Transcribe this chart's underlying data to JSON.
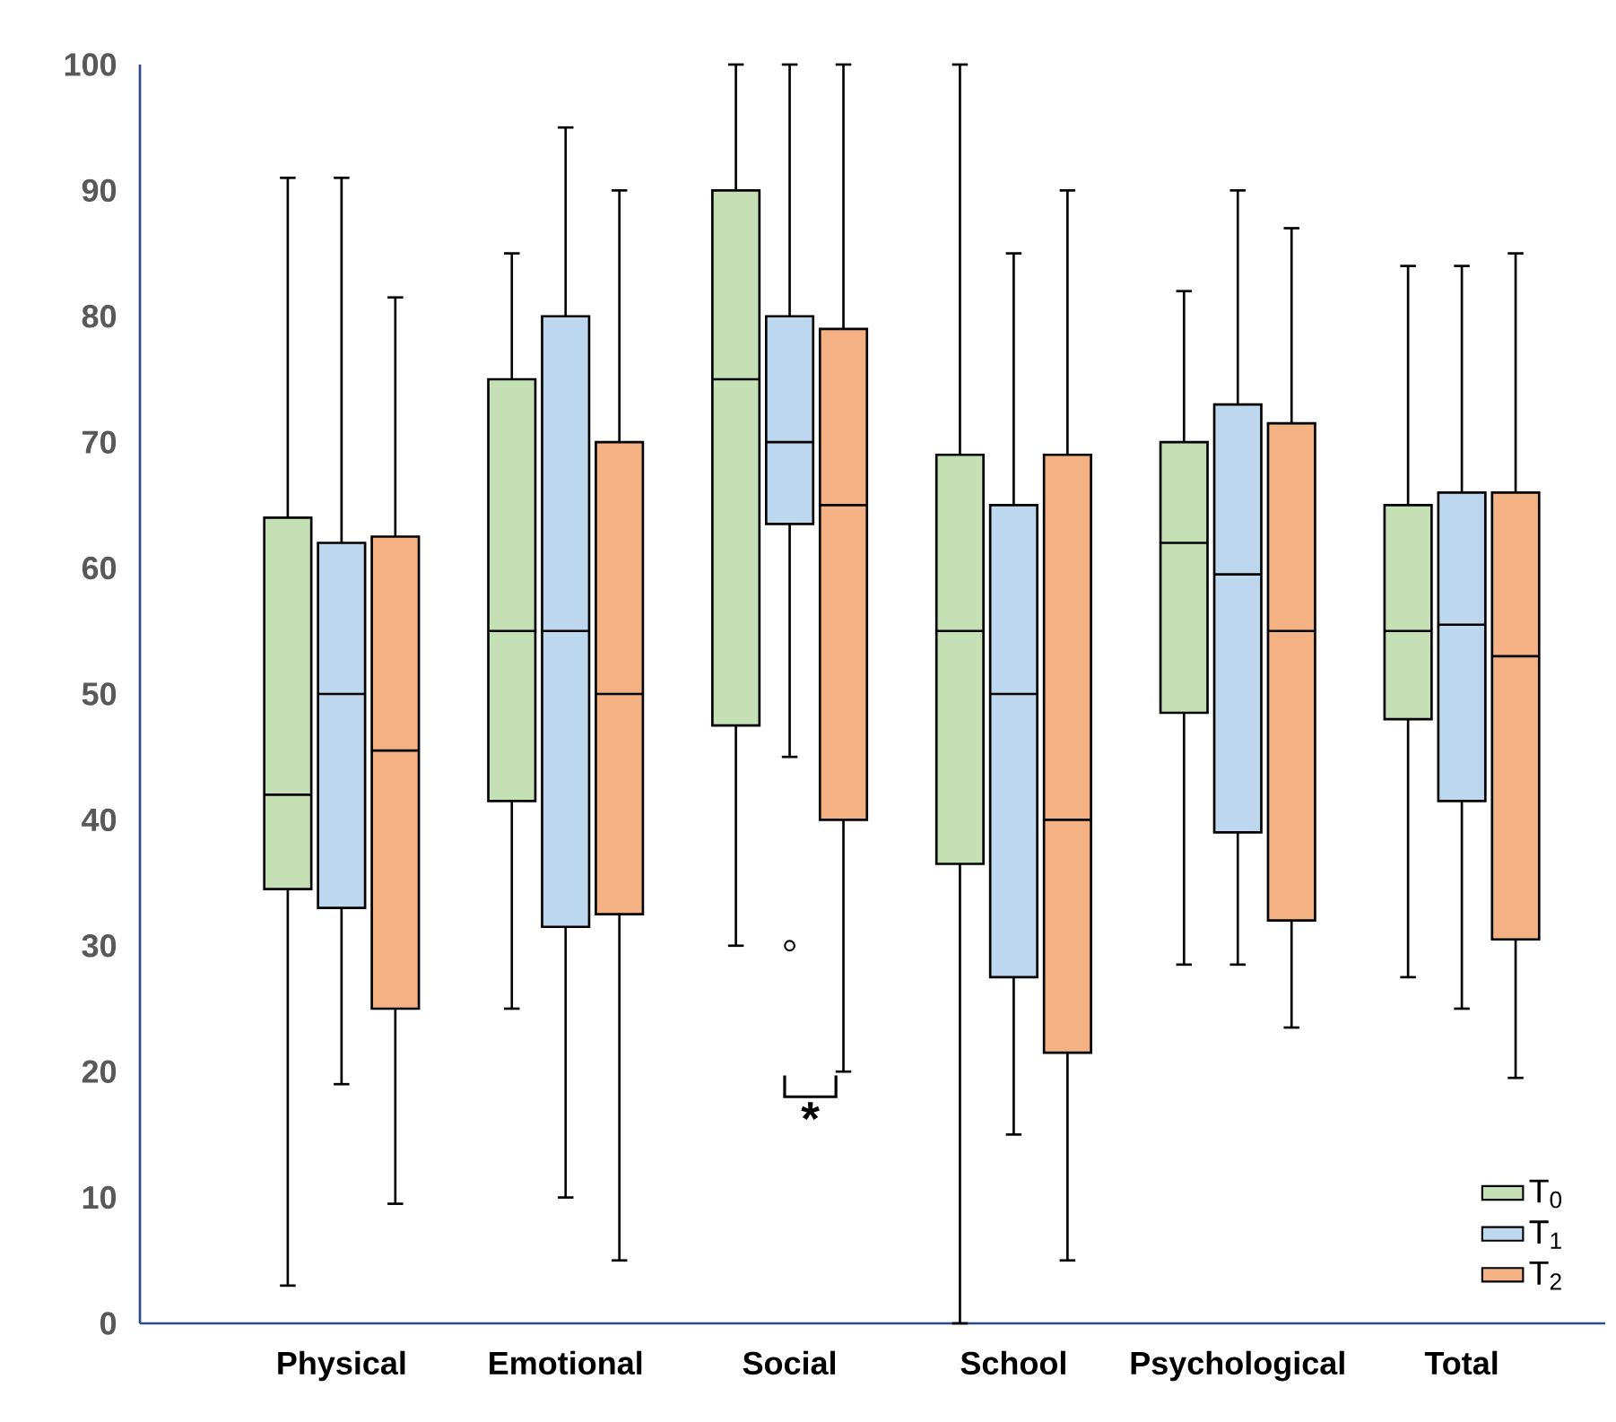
{
  "chart_data": {
    "type": "box",
    "categories": [
      "Physical",
      "Emotional",
      "Social",
      "School",
      "Psychological",
      "Total"
    ],
    "series": [
      {
        "name": "T$_{0}$",
        "color": "#c5e0b4",
        "boxes": [
          {
            "low": 3,
            "q1": 34.5,
            "median": 42,
            "q3": 64,
            "high": 91
          },
          {
            "low": 25,
            "q1": 41.5,
            "median": 55,
            "q3": 75,
            "high": 85
          },
          {
            "low": 30,
            "q1": 47.5,
            "median": 75,
            "q3": 90,
            "high": 100
          },
          {
            "low": 0,
            "q1": 36.5,
            "median": 55,
            "q3": 69,
            "high": 100
          },
          {
            "low": 28.5,
            "q1": 48.5,
            "median": 62,
            "q3": 70,
            "high": 82
          },
          {
            "low": 27.5,
            "q1": 48,
            "median": 55,
            "q3": 65,
            "high": 84
          }
        ]
      },
      {
        "name": "T$_{1}$",
        "color": "#bdd7ee",
        "boxes": [
          {
            "low": 19,
            "q1": 33,
            "median": 50,
            "q3": 62,
            "high": 91
          },
          {
            "low": 10,
            "q1": 31.5,
            "median": 55,
            "q3": 80,
            "high": 95
          },
          {
            "low": 45,
            "q1": 63.5,
            "median": 70,
            "q3": 80,
            "high": 100,
            "outliers": [
              30
            ]
          },
          {
            "low": 15,
            "q1": 27.5,
            "median": 50,
            "q3": 65,
            "high": 85
          },
          {
            "low": 28.5,
            "q1": 39,
            "median": 59.5,
            "q3": 73,
            "high": 90
          },
          {
            "low": 25,
            "q1": 41.5,
            "median": 55.5,
            "q3": 66,
            "high": 84
          }
        ]
      },
      {
        "name": "T$_{2}$",
        "color": "#f4b183",
        "boxes": [
          {
            "low": 9.5,
            "q1": 25,
            "median": 45.5,
            "q3": 62.5,
            "high": 81.5
          },
          {
            "low": 5,
            "q1": 32.5,
            "median": 50,
            "q3": 70,
            "high": 90
          },
          {
            "low": 20,
            "q1": 40,
            "median": 65,
            "q3": 79,
            "high": 100
          },
          {
            "low": 5,
            "q1": 21.5,
            "median": 40,
            "q3": 69,
            "high": 90
          },
          {
            "low": 23.5,
            "q1": 32,
            "median": 55,
            "q3": 71.5,
            "high": 87
          },
          {
            "low": 19.5,
            "q1": 30.5,
            "median": 53,
            "q3": 66,
            "high": 85
          }
        ]
      }
    ],
    "ylim": [
      0,
      100
    ],
    "yticks": [
      0,
      10,
      20,
      30,
      40,
      50,
      60,
      70,
      80,
      90,
      100
    ],
    "grid": false,
    "legend": "bottom right",
    "annotations": [
      "*"
    ]
  }
}
